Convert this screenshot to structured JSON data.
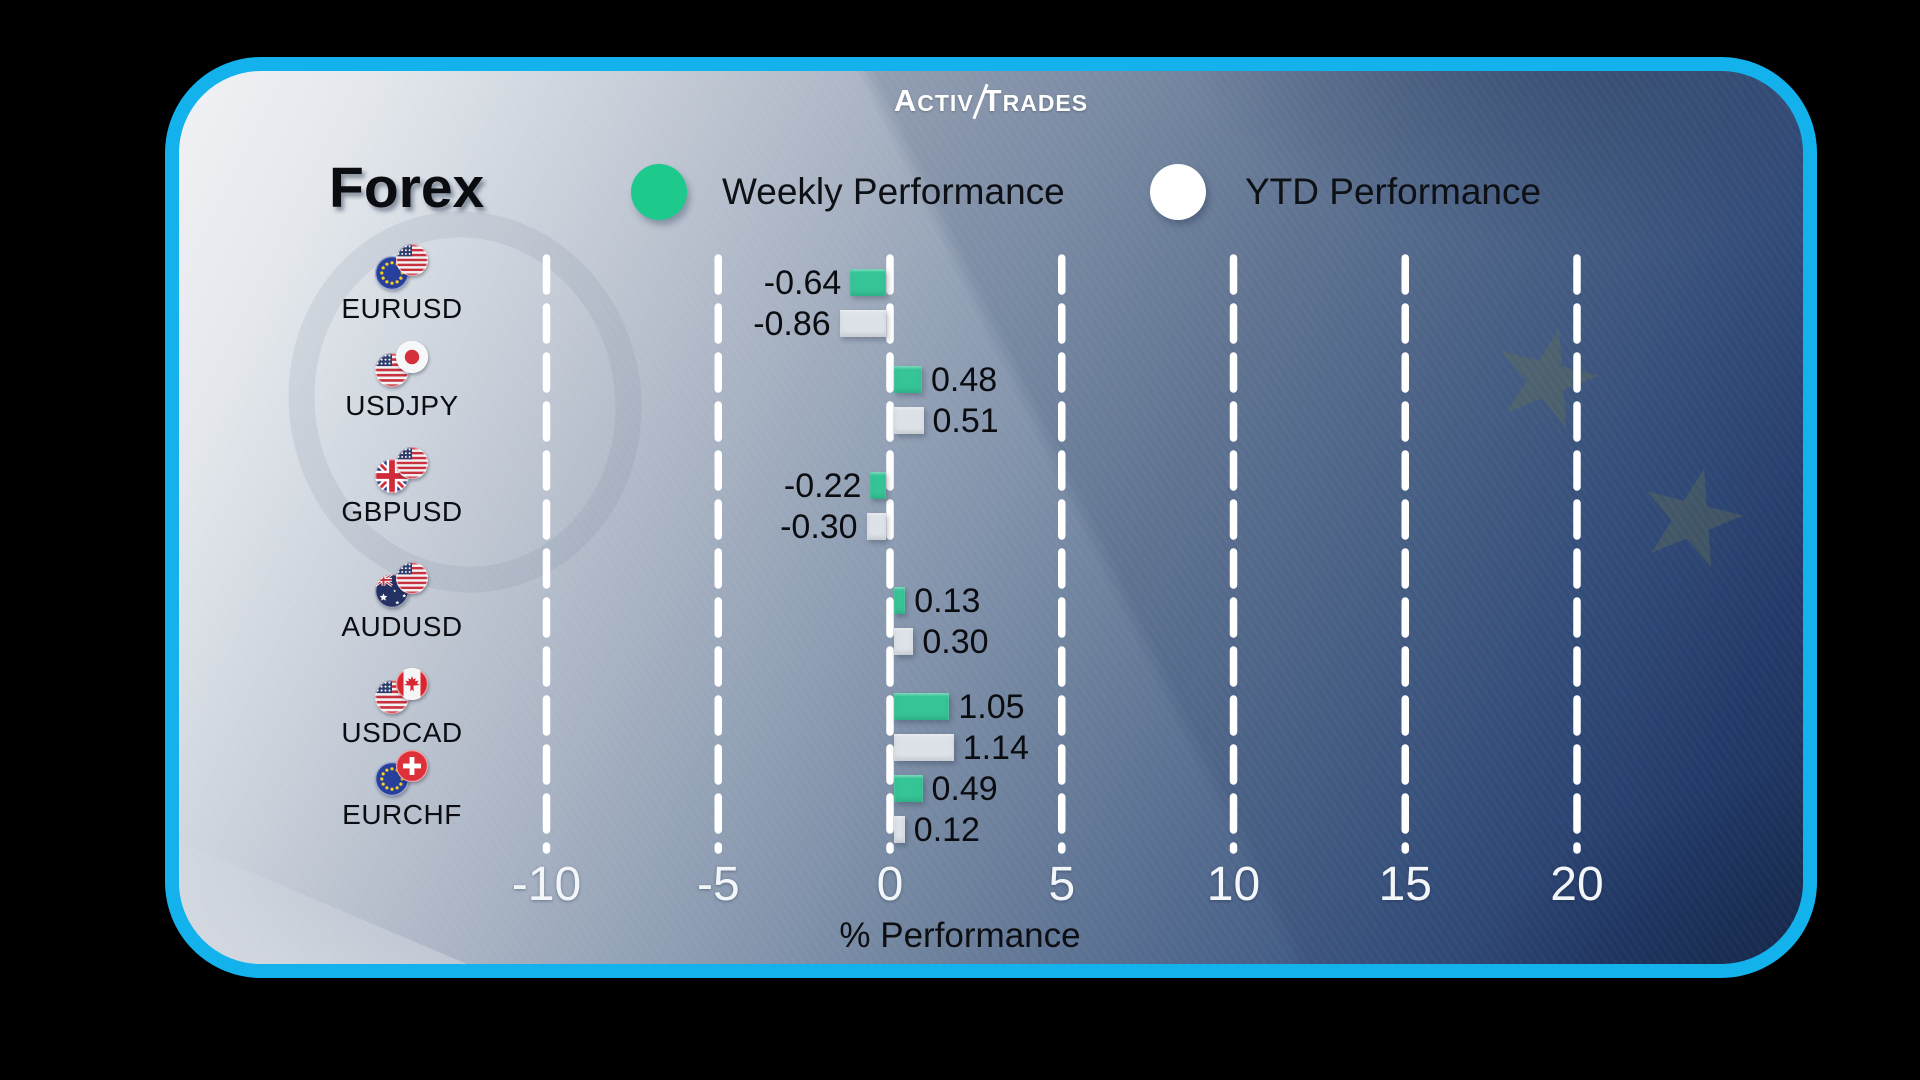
{
  "brand": {
    "logo_a": "A",
    "logo_ctiv": "CTIV",
    "logo_t": "T",
    "logo_rades": "RADES"
  },
  "header": {
    "title": "Forex",
    "legend": [
      {
        "label": "Weekly Performance",
        "color": "#1ec98c"
      },
      {
        "label": "YTD Performance",
        "color": "#ffffff"
      }
    ]
  },
  "chart_data": {
    "type": "bar",
    "orientation": "horizontal",
    "title": "Forex",
    "xlabel": "% Performance",
    "x_ticks": [
      -10,
      -5,
      0,
      5,
      10,
      15,
      20
    ],
    "xlim": [
      -10,
      20
    ],
    "grid": "dashed-vertical-white",
    "legend_position": "top",
    "categories": [
      "EURUSD",
      "USDJPY",
      "GBPUSD",
      "AUDUSD",
      "USDCAD",
      "EURCHF"
    ],
    "flags": [
      [
        "eu",
        "us"
      ],
      [
        "us",
        "jp"
      ],
      [
        "gb",
        "us"
      ],
      [
        "au",
        "us"
      ],
      [
        "us",
        "ca"
      ],
      [
        "eu",
        "ch"
      ]
    ],
    "series": [
      {
        "name": "Weekly Performance",
        "color": "#35c496",
        "values": [
          -0.64,
          0.48,
          -0.22,
          0.13,
          1.05,
          0.49
        ],
        "labels": [
          "-0.64",
          "0.48",
          "-0.22",
          "0.13",
          "1.05",
          "0.49"
        ]
      },
      {
        "name": "YTD Performance",
        "color": "#dde2e8",
        "values": [
          -0.86,
          0.51,
          -0.3,
          0.3,
          1.14,
          0.12
        ],
        "labels": [
          "-0.86",
          "0.51",
          "-0.30",
          "0.30",
          "1.14",
          "0.12"
        ]
      }
    ]
  },
  "style": {
    "card_border": "#14b2ec",
    "dash_color": "#ffffff",
    "background_outer": "#000000"
  }
}
